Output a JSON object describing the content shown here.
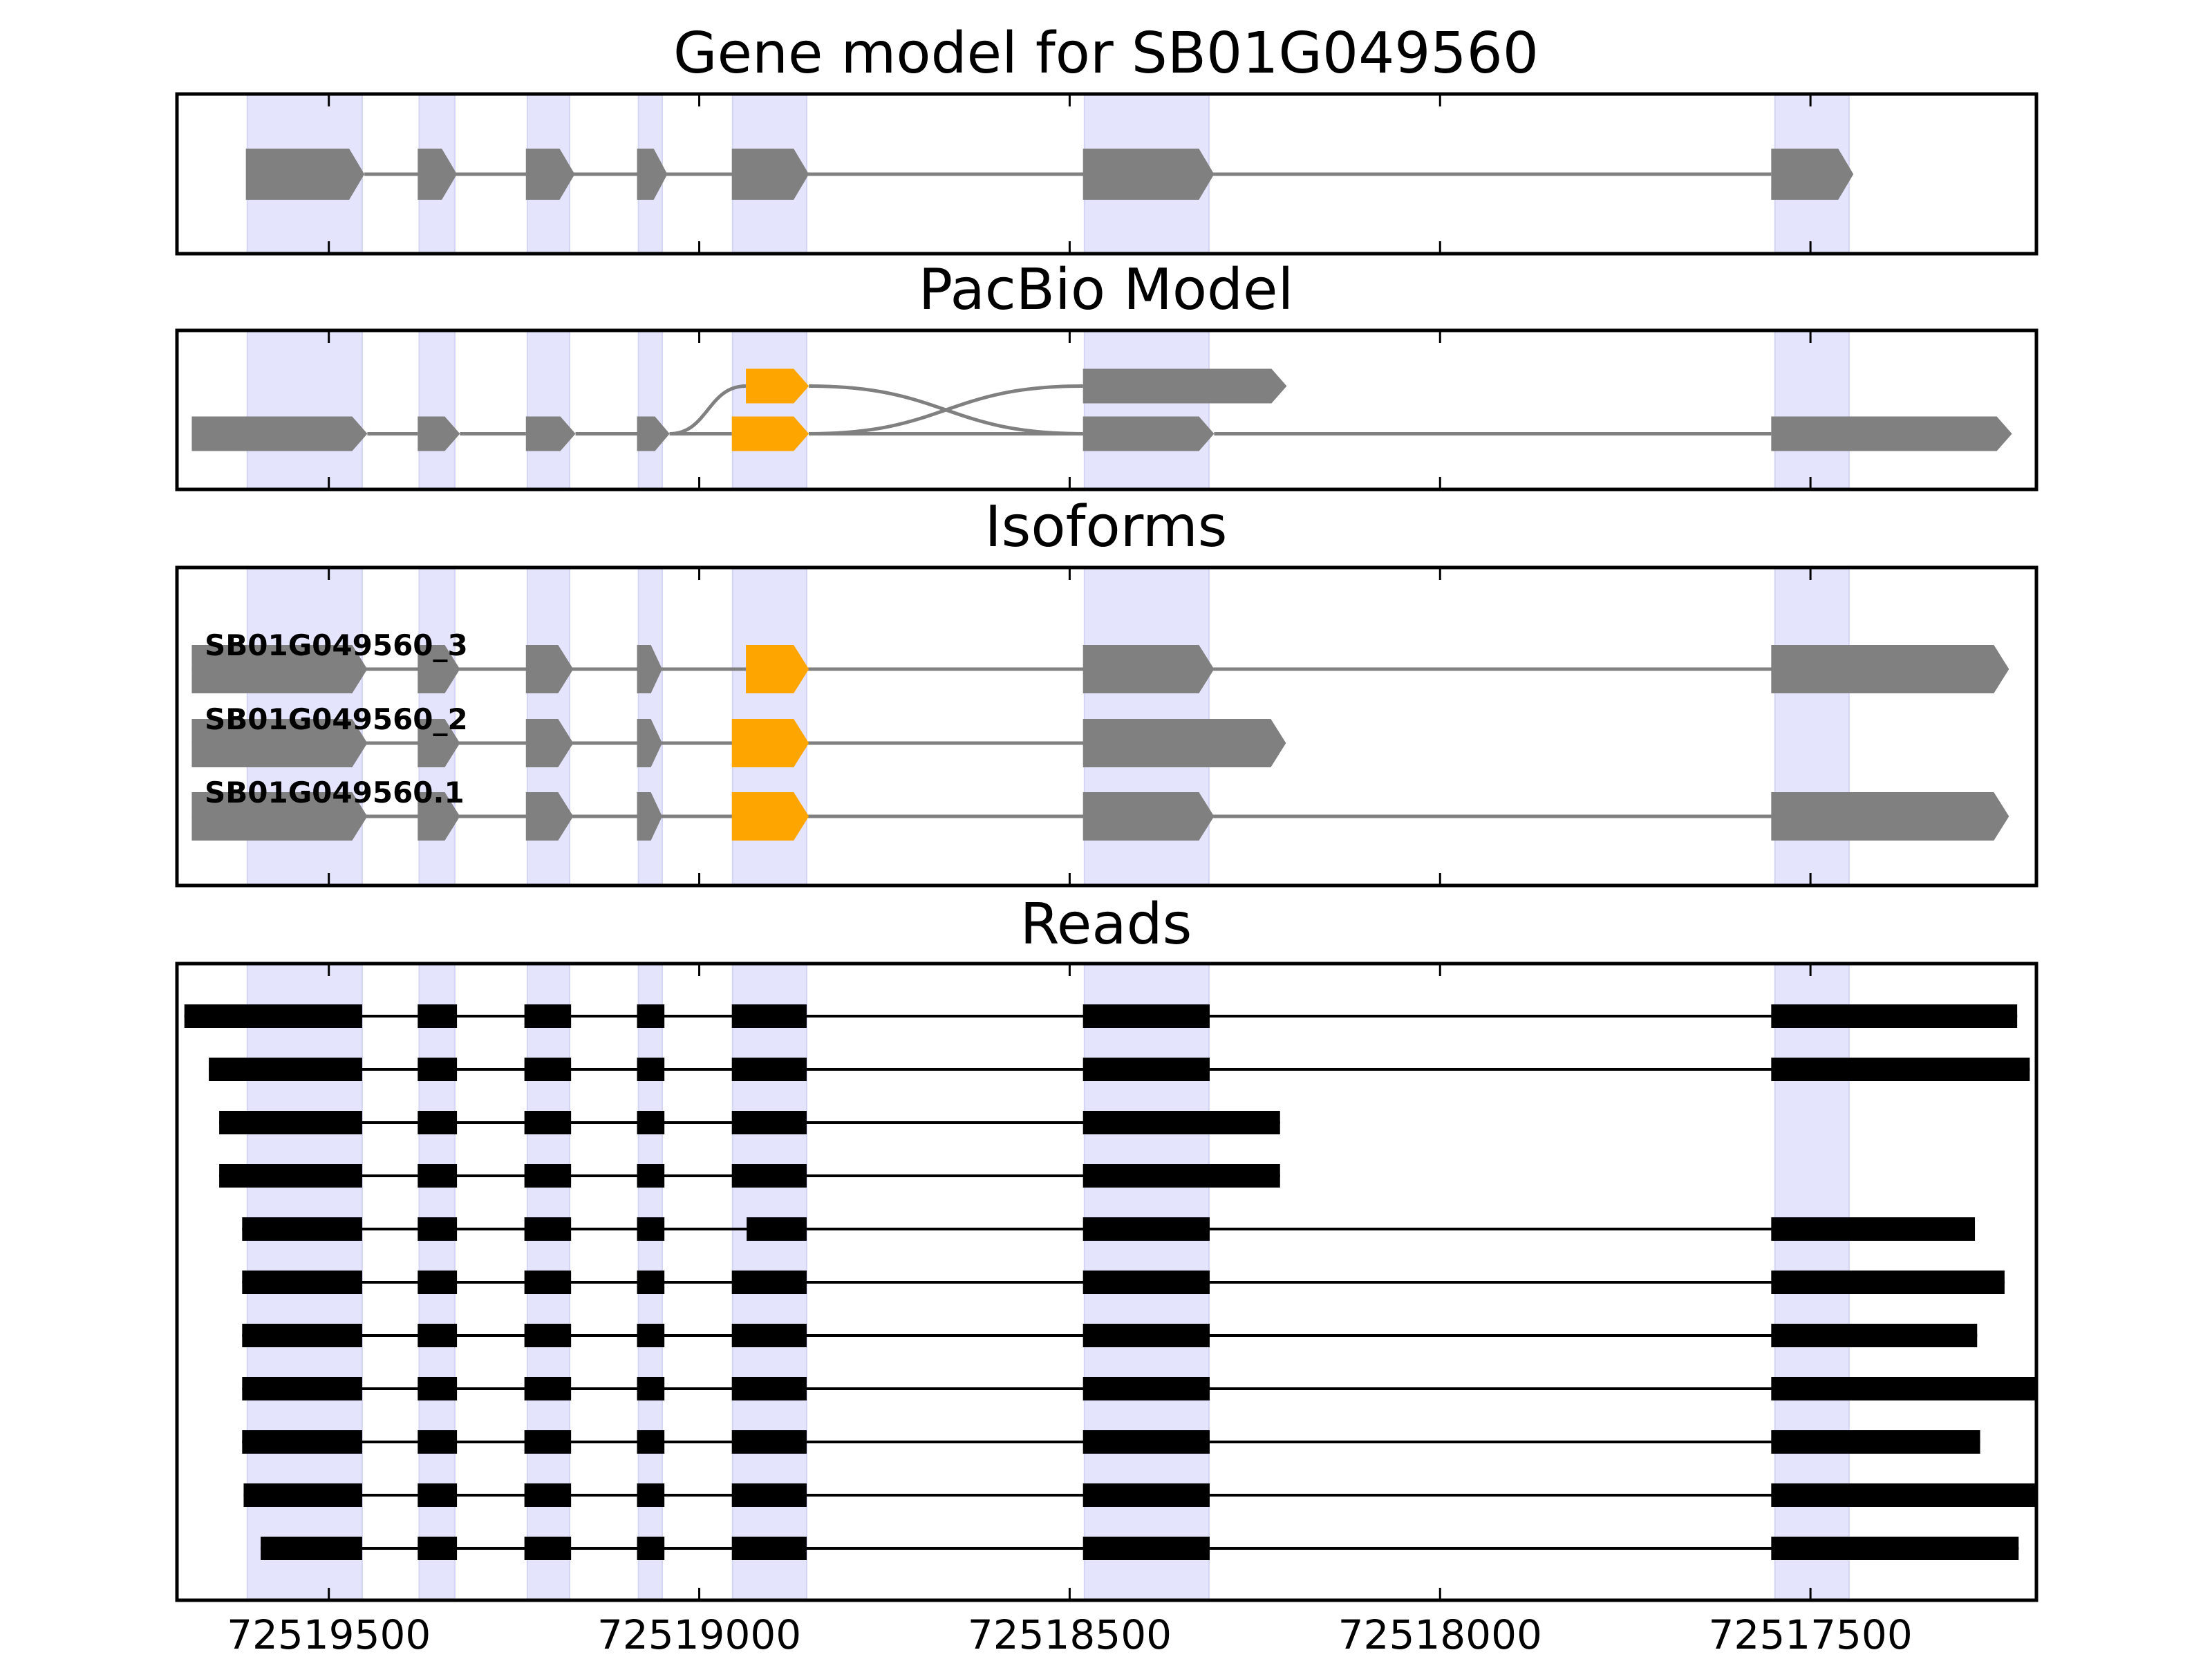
{
  "panels": {
    "gene_model": {
      "title": "Gene model for SB01G049560"
    },
    "pacbio": {
      "title": "PacBio Model"
    },
    "isoforms": {
      "title": "Isoforms"
    },
    "reads": {
      "title": "Reads"
    }
  },
  "chart_data": {
    "type": "gene-track",
    "xlim": [
      72519705,
      72517195
    ],
    "x_ticks": [
      {
        "value": 72519500,
        "label": "72519500"
      },
      {
        "value": 72519000,
        "label": "72519000"
      },
      {
        "value": 72518500,
        "label": "72518500"
      },
      {
        "value": 72518000,
        "label": "72518000"
      },
      {
        "value": 72517500,
        "label": "72517500"
      }
    ],
    "colors": {
      "exon": "#808080",
      "alt_exon": "#ffa500",
      "intron": "#808080",
      "highlight": "#e4e4fc",
      "read": "#000000"
    },
    "highlight_regions": [
      [
        72519610,
        72519455
      ],
      [
        72519378,
        72519330
      ],
      [
        72519232,
        72519175
      ],
      [
        72519082,
        72519050
      ],
      [
        72518955,
        72518855
      ],
      [
        72518480,
        72518312
      ],
      [
        72517548,
        72517448
      ]
    ],
    "gene_model": {
      "exons": [
        [
          72519612,
          72519452
        ],
        [
          72519380,
          72519327
        ],
        [
          72519234,
          72519168
        ],
        [
          72519084,
          72519043
        ],
        [
          72518956,
          72518852
        ],
        [
          72518482,
          72518305
        ],
        [
          72517553,
          72517442
        ]
      ]
    },
    "pacbio": {
      "row_y": [
        0.35,
        0.65
      ],
      "exons": [
        {
          "start": 72519685,
          "end": 72519448,
          "row": 1,
          "color": "exon"
        },
        {
          "start": 72519380,
          "end": 72519323,
          "row": 1,
          "color": "exon"
        },
        {
          "start": 72519234,
          "end": 72519167,
          "row": 1,
          "color": "exon"
        },
        {
          "start": 72519084,
          "end": 72519040,
          "row": 1,
          "color": "exon"
        },
        {
          "start": 72518937,
          "end": 72518852,
          "row": 0,
          "color": "alt_exon"
        },
        {
          "start": 72518956,
          "end": 72518852,
          "row": 1,
          "color": "alt_exon"
        },
        {
          "start": 72518482,
          "end": 72518207,
          "row": 0,
          "color": "exon"
        },
        {
          "start": 72518482,
          "end": 72518305,
          "row": 1,
          "color": "exon"
        },
        {
          "start": 72517553,
          "end": 72517228,
          "row": 1,
          "color": "exon"
        }
      ],
      "links": [
        {
          "from": 72519040,
          "from_row": 1,
          "to": 72518937,
          "to_row": 0
        },
        {
          "from": 72518852,
          "from_row": 0,
          "to": 72518482,
          "to_row": 1
        },
        {
          "from": 72518852,
          "from_row": 1,
          "to": 72518482,
          "to_row": 0
        }
      ]
    },
    "isoforms": [
      {
        "name": "SB01G049560_3",
        "exons": [
          [
            72519685,
            72519448
          ],
          [
            72519380,
            72519323
          ],
          [
            72519234,
            72519170
          ],
          [
            72519084,
            72519050
          ],
          [
            72518937,
            72518852
          ],
          [
            72518482,
            72518305
          ],
          [
            72517553,
            72517232
          ]
        ]
      },
      {
        "name": "SB01G049560_2",
        "exons": [
          [
            72519685,
            72519448
          ],
          [
            72519380,
            72519323
          ],
          [
            72519234,
            72519170
          ],
          [
            72519084,
            72519050
          ],
          [
            72518956,
            72518852
          ],
          [
            72518482,
            72518208
          ]
        ]
      },
      {
        "name": "SB01G049560.1",
        "exons": [
          [
            72519685,
            72519448
          ],
          [
            72519380,
            72519323
          ],
          [
            72519234,
            72519170
          ],
          [
            72519084,
            72519050
          ],
          [
            72518956,
            72518852
          ],
          [
            72518482,
            72518305
          ],
          [
            72517553,
            72517232
          ]
        ]
      }
    ],
    "reads": [
      {
        "blocks": [
          [
            72519695,
            72519455
          ],
          [
            72519380,
            72519327
          ],
          [
            72519236,
            72519173
          ],
          [
            72519084,
            72519047
          ],
          [
            72518956,
            72518855
          ],
          [
            72518482,
            72518311
          ],
          [
            72517553,
            72517221
          ]
        ]
      },
      {
        "blocks": [
          [
            72519662,
            72519455
          ],
          [
            72519380,
            72519327
          ],
          [
            72519236,
            72519173
          ],
          [
            72519084,
            72519047
          ],
          [
            72518956,
            72518855
          ],
          [
            72518482,
            72518311
          ],
          [
            72517553,
            72517204
          ]
        ]
      },
      {
        "blocks": [
          [
            72519648,
            72519455
          ],
          [
            72519380,
            72519327
          ],
          [
            72519236,
            72519173
          ],
          [
            72519084,
            72519047
          ],
          [
            72518956,
            72518855
          ],
          [
            72518482,
            72518216
          ]
        ]
      },
      {
        "blocks": [
          [
            72519648,
            72519455
          ],
          [
            72519380,
            72519327
          ],
          [
            72519236,
            72519173
          ],
          [
            72519084,
            72519047
          ],
          [
            72518956,
            72518855
          ],
          [
            72518482,
            72518216
          ]
        ]
      },
      {
        "blocks": [
          [
            72519617,
            72519455
          ],
          [
            72519380,
            72519327
          ],
          [
            72519236,
            72519173
          ],
          [
            72519084,
            72519047
          ],
          [
            72518936,
            72518855
          ],
          [
            72518482,
            72518311
          ],
          [
            72517553,
            72517278
          ]
        ]
      },
      {
        "blocks": [
          [
            72519617,
            72519455
          ],
          [
            72519380,
            72519327
          ],
          [
            72519236,
            72519173
          ],
          [
            72519084,
            72519047
          ],
          [
            72518956,
            72518855
          ],
          [
            72518482,
            72518311
          ],
          [
            72517553,
            72517238
          ]
        ]
      },
      {
        "blocks": [
          [
            72519617,
            72519455
          ],
          [
            72519380,
            72519327
          ],
          [
            72519236,
            72519173
          ],
          [
            72519084,
            72519047
          ],
          [
            72518956,
            72518855
          ],
          [
            72518482,
            72518311
          ],
          [
            72517553,
            72517275
          ]
        ]
      },
      {
        "blocks": [
          [
            72519617,
            72519455
          ],
          [
            72519380,
            72519327
          ],
          [
            72519236,
            72519173
          ],
          [
            72519084,
            72519047
          ],
          [
            72518956,
            72518855
          ],
          [
            72518482,
            72518311
          ],
          [
            72517553,
            72517195
          ]
        ]
      },
      {
        "blocks": [
          [
            72519617,
            72519455
          ],
          [
            72519380,
            72519327
          ],
          [
            72519236,
            72519173
          ],
          [
            72519084,
            72519047
          ],
          [
            72518956,
            72518855
          ],
          [
            72518482,
            72518311
          ],
          [
            72517553,
            72517271
          ]
        ]
      },
      {
        "blocks": [
          [
            72519615,
            72519455
          ],
          [
            72519380,
            72519327
          ],
          [
            72519236,
            72519173
          ],
          [
            72519084,
            72519047
          ],
          [
            72518956,
            72518855
          ],
          [
            72518482,
            72518311
          ],
          [
            72517553,
            72517195
          ]
        ]
      },
      {
        "blocks": [
          [
            72519592,
            72519455
          ],
          [
            72519380,
            72519327
          ],
          [
            72519236,
            72519173
          ],
          [
            72519084,
            72519047
          ],
          [
            72518956,
            72518855
          ],
          [
            72518482,
            72518311
          ],
          [
            72517553,
            72517219
          ]
        ]
      }
    ]
  }
}
